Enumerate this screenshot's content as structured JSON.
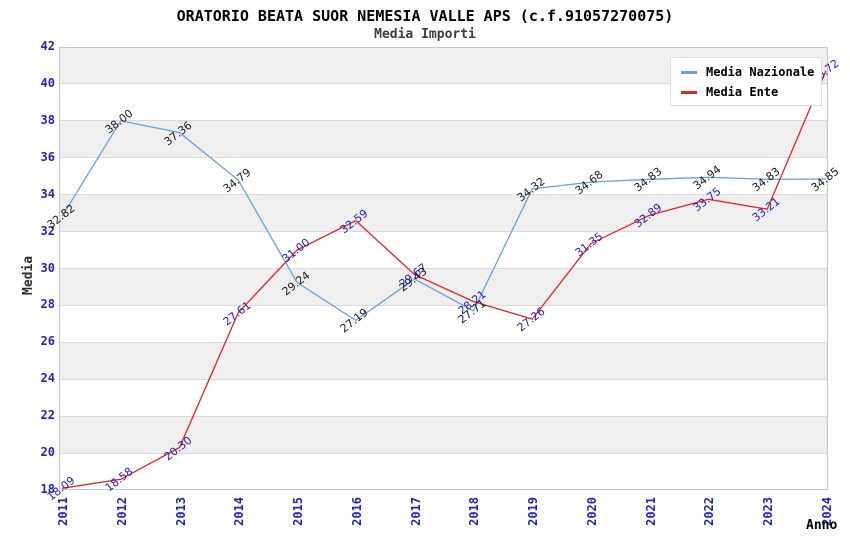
{
  "title": "ORATORIO BEATA SUOR NEMESIA VALLE APS (c.f.91057270075)",
  "subtitle": "Media Importi",
  "chart_data": {
    "type": "line",
    "title": "ORATORIO BEATA SUOR NEMESIA VALLE APS (c.f.91057270075)",
    "subtitle": "Media Importi",
    "xlabel": "Anno",
    "ylabel": "Media",
    "categories": [
      "2011",
      "2012",
      "2013",
      "2014",
      "2015",
      "2016",
      "2017",
      "2018",
      "2019",
      "2020",
      "2021",
      "2022",
      "2023",
      "2024"
    ],
    "series": [
      {
        "name": "Media Nazionale",
        "color": "#6aa2dc",
        "label_color": "#1a1a1a",
        "values": [
          32.82,
          38.0,
          37.36,
          34.79,
          29.24,
          27.19,
          29.43,
          27.71,
          34.32,
          34.68,
          34.83,
          34.94,
          34.83,
          34.85
        ]
      },
      {
        "name": "Media Ente",
        "color": "#e62222",
        "label_color": "#2222bb",
        "values": [
          18.09,
          18.58,
          20.3,
          27.61,
          31.0,
          32.59,
          29.67,
          28.21,
          27.26,
          31.35,
          32.89,
          33.75,
          33.21,
          40.72
        ]
      }
    ],
    "ylim": [
      18,
      42
    ],
    "yticks": [
      18,
      20,
      22,
      24,
      26,
      28,
      30,
      32,
      34,
      36,
      38,
      40,
      42
    ],
    "grid": "horizontal-bands",
    "legend_position": "top-right"
  },
  "style": {
    "tick_color": "#2222cc",
    "band_color": "#efefef",
    "band_alt_color": "#ffffff",
    "gridline_color": "#dbdbdb"
  }
}
